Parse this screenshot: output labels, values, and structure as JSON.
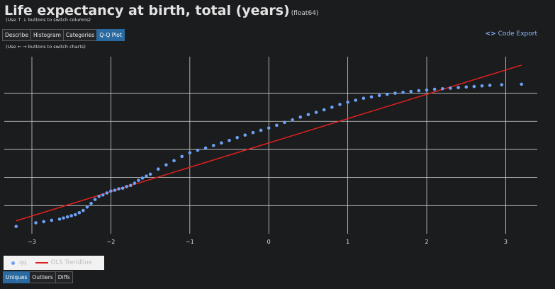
{
  "header": {
    "title": "Life expectancy at birth, total (years)",
    "dtype": "(float64)",
    "column_hint": "(Use ↑ ↓ buttons to switch columns)",
    "chart_hint": "(Use ← → buttons to switch charts)"
  },
  "tabs": [
    {
      "label": "Describe",
      "active": false
    },
    {
      "label": "Histogram",
      "active": false
    },
    {
      "label": "Categories",
      "active": false
    },
    {
      "label": "Q-Q Plot",
      "active": true
    }
  ],
  "code_export": {
    "icon": "<>",
    "label": "Code Export"
  },
  "legend": {
    "qq_label": "qq",
    "trend_label": "OLS Trendline"
  },
  "bottom_tabs": [
    {
      "label": "Uniques",
      "active": true
    },
    {
      "label": "Outliers",
      "active": false
    },
    {
      "label": "Diffs",
      "active": false
    }
  ],
  "colors": {
    "background": "#1b1c1e",
    "points": "#6ca2f5",
    "trendline": "#e02020",
    "grid": "#d0d0d0",
    "active_tab": "#2a6aa0"
  },
  "chart_data": {
    "type": "scatter",
    "x_ticks": [
      "−3",
      "−2",
      "−1",
      "0",
      "1",
      "2",
      "3"
    ],
    "xlim": [
      -3.35,
      3.4
    ],
    "ylim": [
      0,
      6.3
    ],
    "y_gridlines": [
      1,
      2,
      3,
      4,
      5
    ],
    "grid": true,
    "series": [
      {
        "name": "qq",
        "kind": "markers",
        "x": [
          -3.2,
          -2.95,
          -2.85,
          -2.75,
          -2.65,
          -2.6,
          -2.55,
          -2.5,
          -2.45,
          -2.4,
          -2.35,
          -2.3,
          -2.25,
          -2.2,
          -2.15,
          -2.1,
          -2.05,
          -2.0,
          -1.95,
          -1.9,
          -1.85,
          -1.8,
          -1.75,
          -1.7,
          -1.65,
          -1.6,
          -1.55,
          -1.5,
          -1.4,
          -1.3,
          -1.2,
          -1.1,
          -1.0,
          -0.9,
          -0.8,
          -0.7,
          -0.6,
          -0.5,
          -0.4,
          -0.3,
          -0.2,
          -0.1,
          0.0,
          0.1,
          0.2,
          0.3,
          0.4,
          0.5,
          0.6,
          0.7,
          0.8,
          0.9,
          1.0,
          1.1,
          1.2,
          1.3,
          1.4,
          1.5,
          1.6,
          1.7,
          1.8,
          1.9,
          2.0,
          2.1,
          2.2,
          2.3,
          2.4,
          2.5,
          2.6,
          2.7,
          2.8,
          2.95,
          3.2
        ],
        "y": [
          0.26,
          0.39,
          0.43,
          0.48,
          0.52,
          0.56,
          0.6,
          0.64,
          0.68,
          0.75,
          0.83,
          0.95,
          1.08,
          1.22,
          1.33,
          1.38,
          1.45,
          1.52,
          1.55,
          1.6,
          1.62,
          1.68,
          1.72,
          1.8,
          1.9,
          1.98,
          2.05,
          2.12,
          2.3,
          2.45,
          2.6,
          2.75,
          2.88,
          2.97,
          3.05,
          3.14,
          3.23,
          3.32,
          3.42,
          3.51,
          3.6,
          3.68,
          3.76,
          3.86,
          3.96,
          4.05,
          4.15,
          4.24,
          4.32,
          4.41,
          4.5,
          4.6,
          4.68,
          4.75,
          4.82,
          4.87,
          4.92,
          4.96,
          5.0,
          5.03,
          5.06,
          5.09,
          5.11,
          5.14,
          5.16,
          5.18,
          5.2,
          5.22,
          5.24,
          5.26,
          5.28,
          5.3,
          5.32
        ]
      },
      {
        "name": "OLS Trendline",
        "kind": "line",
        "x": [
          -3.2,
          3.2
        ],
        "y": [
          0.46,
          6.0
        ]
      }
    ]
  }
}
